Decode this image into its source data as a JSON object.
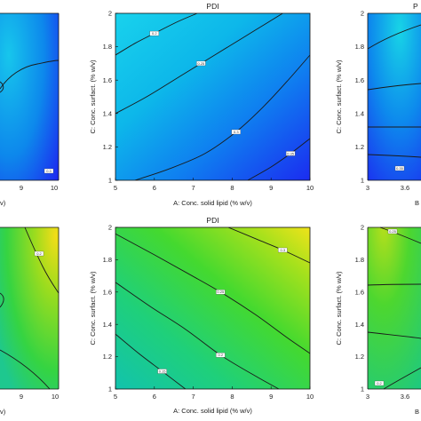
{
  "panels": [
    {
      "id": "top-left-partial",
      "title": "",
      "xlabel": "",
      "ylabel": "",
      "x_ticks": [
        "9",
        "10"
      ],
      "y_ticks": [],
      "cutoff_x_label": "v)",
      "palette": "blue",
      "contour_labels": [
        "0.3"
      ]
    },
    {
      "id": "top-center",
      "title": "PDI",
      "xlabel": "A: Conc. solid lipid (% w/v)",
      "ylabel": "C: Conc. surfact. (% w/v)",
      "x_ticks": [
        "5",
        "6",
        "7",
        "8",
        "9",
        "10"
      ],
      "y_ticks": [
        "1",
        "1.2",
        "1.4",
        "1.6",
        "1.8",
        "2"
      ],
      "palette": "blue",
      "contour_labels": [
        "0.2",
        "0.25",
        "0.3",
        "0.35"
      ]
    },
    {
      "id": "top-right-partial",
      "title": "",
      "xlabel": "",
      "ylabel": "C: Conc. surfact. (% w/v)",
      "x_ticks": [
        "3",
        "3.6"
      ],
      "y_ticks": [
        "1",
        "1.2",
        "1.4",
        "1.6",
        "1.8",
        "2"
      ],
      "cutoff_x_label": "B",
      "cutoff_title": "P",
      "palette": "blue",
      "contour_labels": [
        "0.35"
      ]
    },
    {
      "id": "bottom-left-partial",
      "title": "",
      "xlabel": "",
      "ylabel": "",
      "x_ticks": [
        "9",
        "10"
      ],
      "y_ticks": [],
      "cutoff_x_label": "v)",
      "palette": "green",
      "contour_labels": [
        "0.2"
      ]
    },
    {
      "id": "bottom-center",
      "title": "PDI",
      "xlabel": "A: Conc. solid lipid (% w/v)",
      "ylabel": "C: Conc. surfact. (% w/v)",
      "x_ticks": [
        "5",
        "6",
        "7",
        "8",
        "9",
        "10"
      ],
      "y_ticks": [
        "1",
        "1.2",
        "1.4",
        "1.6",
        "1.8",
        "2"
      ],
      "palette": "green",
      "contour_labels": [
        "0.15",
        "0.2",
        "0.25",
        "0.3"
      ]
    },
    {
      "id": "bottom-right-partial",
      "title": "",
      "xlabel": "",
      "ylabel": "C: Conc. surfact. (% w/v)",
      "x_ticks": [
        "3",
        "3.6"
      ],
      "y_ticks": [
        "1",
        "1.2",
        "1.4",
        "1.6",
        "1.8",
        "2"
      ],
      "cutoff_x_label": "B",
      "palette": "green",
      "contour_labels": [
        "0.25",
        "0.2"
      ]
    }
  ],
  "chart_data": [
    {
      "type": "heatmap",
      "title": "PDI",
      "xlabel": "A: Conc. solid lipid (% w/v)",
      "ylabel": "C: Conc. surfact. (% w/v)",
      "xlim": [
        5,
        10
      ],
      "ylim": [
        1,
        2
      ],
      "colormap": "blue-cyan",
      "contours": [
        {
          "label": "0.2",
          "points": [
            [
              5,
              1.75
            ],
            [
              5.5,
              1.82
            ],
            [
              6,
              1.88
            ],
            [
              6.6,
              1.95
            ],
            [
              7.1,
              2.0
            ]
          ]
        },
        {
          "label": "0.25",
          "points": [
            [
              5,
              1.4
            ],
            [
              5.8,
              1.5
            ],
            [
              6.5,
              1.6
            ],
            [
              7.2,
              1.7
            ],
            [
              7.9,
              1.8
            ],
            [
              8.6,
              1.9
            ],
            [
              9.3,
              2.0
            ]
          ]
        },
        {
          "label": "0.3",
          "points": [
            [
              5.5,
              1.0
            ],
            [
              6.4,
              1.07
            ],
            [
              7.3,
              1.16
            ],
            [
              8.1,
              1.29
            ],
            [
              8.8,
              1.44
            ],
            [
              9.4,
              1.59
            ],
            [
              10,
              1.75
            ]
          ]
        },
        {
          "label": "0.35",
          "points": [
            [
              8.4,
              1.0
            ],
            [
              9.0,
              1.08
            ],
            [
              9.5,
              1.16
            ],
            [
              10,
              1.25
            ]
          ]
        }
      ]
    },
    {
      "type": "heatmap",
      "title": "PDI",
      "xlabel": "A: Conc. solid lipid (% w/v)",
      "ylabel": "C: Conc. surfact. (% w/v)",
      "xlim": [
        5,
        10
      ],
      "ylim": [
        1,
        2
      ],
      "colormap": "green-yellow",
      "contours": [
        {
          "label": "0.15",
          "points": [
            [
              5,
              1.34
            ],
            [
              5.6,
              1.22
            ],
            [
              6.2,
              1.11
            ],
            [
              6.8,
              1.0
            ]
          ]
        },
        {
          "label": "0.2",
          "points": [
            [
              5,
              1.66
            ],
            [
              5.9,
              1.51
            ],
            [
              6.8,
              1.37
            ],
            [
              7.7,
              1.21
            ],
            [
              8.6,
              1.08
            ],
            [
              9.2,
              1.0
            ]
          ]
        },
        {
          "label": "0.25",
          "points": [
            [
              5,
              1.96
            ],
            [
              6.0,
              1.83
            ],
            [
              6.9,
              1.71
            ],
            [
              7.7,
              1.6
            ],
            [
              8.6,
              1.46
            ],
            [
              9.4,
              1.32
            ],
            [
              10,
              1.22
            ]
          ]
        },
        {
          "label": "0.3",
          "points": [
            [
              7.9,
              2.0
            ],
            [
              8.7,
              1.92
            ],
            [
              9.3,
              1.86
            ],
            [
              10,
              1.78
            ]
          ]
        }
      ]
    }
  ]
}
